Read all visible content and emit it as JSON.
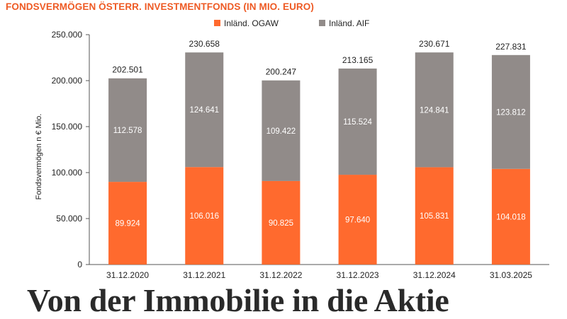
{
  "chart_title": "FONDSVERMÖGEN ÖSTERR. INVESTMENTFONDS (IN MIO. EURO)",
  "headline": "Von der Immobilie in die Aktie",
  "colors": {
    "ogaw": "#ff6a2e",
    "aif": "#918b89",
    "title": "#ee5a24",
    "axis_text": "#222222"
  },
  "chart_data": {
    "type": "bar",
    "stacked": true,
    "categories": [
      "31.12.2020",
      "31.12.2021",
      "31.12.2022",
      "31.12.2023",
      "31.12.2024",
      "31.03.2025"
    ],
    "series": [
      {
        "name": "Inländ. OGAW",
        "values": [
          89.924,
          106.016,
          90.825,
          97.64,
          105.831,
          104.018
        ],
        "labels": [
          "89.924",
          "106.016",
          "90.825",
          "97.640",
          "105.831",
          "104.018"
        ]
      },
      {
        "name": "Inländ. AIF",
        "values": [
          112.578,
          124.641,
          109.422,
          115.524,
          124.841,
          123.812
        ],
        "labels": [
          "112.578",
          "124.641",
          "109.422",
          "115.524",
          "124.841",
          "123.812"
        ]
      }
    ],
    "totals": [
      "202.501",
      "230.658",
      "200.247",
      "213.165",
      "230.671",
      "227.831"
    ],
    "total_values": [
      202.501,
      230.658,
      200.247,
      213.165,
      230.671,
      227.831
    ],
    "ylabel": "Fondsvermögen n € Mio.",
    "xlabel": "",
    "ylim": [
      0,
      250
    ],
    "yticks": [
      0,
      50,
      100,
      150,
      200,
      250
    ],
    "ytick_labels": [
      "0",
      "50.000",
      "100.000",
      "150.000",
      "200.000",
      "250.000"
    ],
    "legend_position": "top-center",
    "grid": false
  }
}
